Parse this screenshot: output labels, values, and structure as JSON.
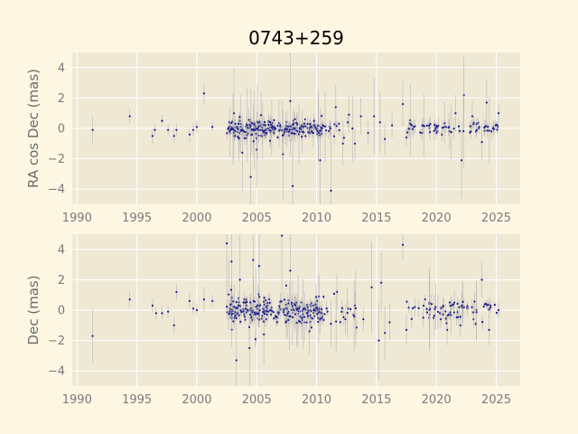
{
  "figure": {
    "title": "0743+259",
    "colors": {
      "page_background": "#fdf6e3",
      "plot_background": "#eee8d5",
      "grid": "#ffffff",
      "error_bar": "#b0b0b0",
      "point": "#1a1a8c",
      "tick_text": "#7a7a7a"
    }
  },
  "chart_data": [
    {
      "type": "scatter",
      "ylabel": "RA cos Dec (mas)",
      "xlabel": "",
      "xlim": [
        1989.6,
        2027.0
      ],
      "ylim": [
        -5.0,
        5.0
      ],
      "xticks": [
        1990,
        1995,
        2000,
        2005,
        2010,
        2015,
        2020,
        2025
      ],
      "yticks": [
        -4,
        -2,
        0,
        2,
        4
      ],
      "xtick_labels": [
        "1990",
        "1995",
        "2000",
        "2005",
        "2010",
        "2015",
        "2020",
        "2025"
      ],
      "ytick_labels": [
        "−4",
        "−2",
        "0",
        "2",
        "4"
      ],
      "grid": true,
      "series": [
        {
          "x": [
            1991.3,
            1994.4,
            1996.3,
            1996.5,
            1997.1,
            1997.6,
            1998.1,
            1998.3,
            1999.4,
            1999.7,
            2000.0,
            2000.6,
            2001.3,
            2003.1,
            2003.8,
            2004.5,
            2005.0,
            2007.2,
            2007.8,
            2008.0,
            2010.3,
            2011.2,
            2011.6,
            2012.2,
            2012.7,
            2013.2,
            2013.7,
            2014.3,
            2014.8,
            2015.3,
            2015.7,
            2016.3,
            2017.2,
            2017.5,
            2018.1,
            2018.8,
            2019.4,
            2020.0,
            2020.8,
            2021.6,
            2022.1,
            2022.3,
            2023.0,
            2023.8,
            2024.2,
            2024.6,
            2025.2
          ],
          "y": [
            -0.1,
            0.8,
            -0.5,
            -0.1,
            0.5,
            -0.1,
            -0.5,
            -0.1,
            -0.4,
            -0.1,
            0.1,
            2.3,
            0.1,
            1.0,
            -1.6,
            -3.2,
            -1.4,
            -1.7,
            1.8,
            -3.8,
            -2.1,
            -4.1,
            1.4,
            -1.0,
            0.9,
            -1.0,
            0.8,
            -0.3,
            0.8,
            0.4,
            -0.7,
            0.2,
            1.6,
            -0.6,
            0.1,
            -0.3,
            0.2,
            -0.3,
            0.1,
            1.0,
            -2.1,
            2.2,
            0.8,
            -0.9,
            1.7,
            -0.2,
            1.0
          ],
          "err": [
            0.9,
            0.5,
            0.5,
            0.4,
            0.4,
            0.4,
            0.5,
            0.4,
            0.5,
            0.4,
            0.4,
            0.7,
            0.3,
            3.0,
            2.5,
            4.0,
            2.5,
            3.0,
            3.5,
            4.0,
            3.5,
            4.5,
            1.5,
            1.5,
            1.2,
            1.0,
            1.2,
            0.8,
            2.5,
            2.0,
            1.0,
            0.8,
            1.5,
            0.6,
            0.5,
            0.6,
            0.4,
            0.5,
            0.4,
            1.2,
            2.5,
            2.5,
            1.0,
            1.2,
            1.5,
            0.6,
            0.6
          ]
        }
      ]
    },
    {
      "type": "scatter",
      "ylabel": "Dec (mas)",
      "xlabel": "",
      "xlim": [
        1989.6,
        2027.0
      ],
      "ylim": [
        -5.0,
        5.0
      ],
      "xticks": [
        1990,
        1995,
        2000,
        2005,
        2010,
        2015,
        2020,
        2025
      ],
      "yticks": [
        -4,
        -2,
        0,
        2,
        4
      ],
      "xtick_labels": [
        "1990",
        "1995",
        "2000",
        "2005",
        "2010",
        "2015",
        "2020",
        "2025"
      ],
      "ytick_labels": [
        "−4",
        "−2",
        "0",
        "2",
        "4"
      ],
      "grid": true,
      "series": [
        {
          "x": [
            1991.3,
            1994.4,
            1996.3,
            1996.6,
            1997.1,
            1997.6,
            1998.1,
            1998.3,
            1999.4,
            1999.7,
            2000.0,
            2000.6,
            2001.3,
            2002.5,
            2002.9,
            2003.3,
            2003.6,
            2004.4,
            2004.7,
            2005.2,
            2005.6,
            2007.1,
            2007.8,
            2009.4,
            2010.2,
            2011.2,
            2011.7,
            2012.4,
            2013.2,
            2013.9,
            2014.6,
            2015.2,
            2015.4,
            2015.7,
            2016.1,
            2017.2,
            2017.5,
            2018.2,
            2018.9,
            2019.6,
            2020.3,
            2020.9,
            2021.5,
            2022.0,
            2022.6,
            2023.1,
            2023.8,
            2024.4,
            2025.2
          ],
          "y": [
            -1.7,
            0.7,
            0.3,
            -0.2,
            -0.2,
            -0.1,
            -1.0,
            1.2,
            0.6,
            0.1,
            0.0,
            0.7,
            0.6,
            4.4,
            3.2,
            -3.3,
            2.0,
            -2.5,
            3.3,
            2.9,
            -1.6,
            4.9,
            2.6,
            -1.4,
            0.9,
            -0.9,
            1.2,
            -0.6,
            0.3,
            -0.6,
            1.5,
            -2.0,
            1.8,
            -1.5,
            -0.8,
            4.3,
            -1.3,
            0.2,
            -0.5,
            0.4,
            -0.2,
            -1.3,
            0.5,
            -1.0,
            0.1,
            -0.6,
            2.0,
            -1.3,
            0.0
          ],
          "err": [
            1.8,
            0.5,
            0.5,
            0.4,
            0.4,
            0.4,
            0.6,
            0.5,
            0.5,
            0.4,
            0.4,
            0.8,
            0.4,
            3.5,
            3.0,
            4.0,
            3.0,
            3.5,
            3.5,
            3.0,
            2.0,
            5.0,
            3.5,
            1.5,
            1.5,
            1.5,
            1.2,
            1.0,
            1.0,
            0.8,
            3.0,
            2.5,
            2.0,
            1.8,
            1.2,
            1.0,
            1.0,
            0.6,
            0.6,
            0.6,
            0.5,
            1.0,
            0.8,
            0.7,
            0.5,
            0.6,
            1.2,
            1.0,
            0.5
          ]
        }
      ]
    }
  ]
}
